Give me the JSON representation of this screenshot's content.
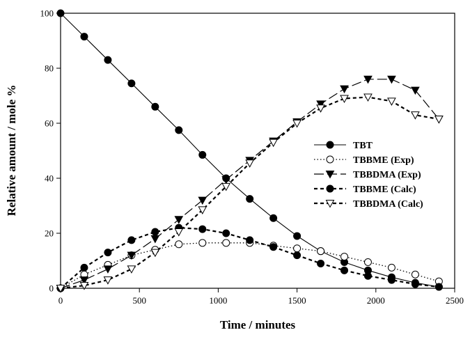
{
  "chart_data": {
    "type": "line",
    "xlabel": "Time / minutes",
    "ylabel": "Relative amount / mole %",
    "xlim": [
      0,
      2500
    ],
    "ylim": [
      0,
      100
    ],
    "xticks": [
      0,
      500,
      1000,
      1500,
      2000,
      2500
    ],
    "yticks": [
      0,
      20,
      40,
      60,
      80,
      100
    ],
    "grid": false,
    "legend_position": "right",
    "series": [
      {
        "name": "TBT",
        "marker": "filled-circle",
        "line": "solid",
        "x": [
          0,
          150,
          300,
          450,
          600,
          750,
          900,
          1050,
          1200,
          1350,
          1500,
          1650,
          1800,
          1950,
          2100,
          2250,
          2400
        ],
        "y": [
          100,
          91.5,
          83,
          74.5,
          66,
          57.5,
          48.5,
          40,
          32.5,
          25.5,
          19,
          13.5,
          9.5,
          6.5,
          4,
          2,
          0.5
        ]
      },
      {
        "name": "TBBME (Exp)",
        "marker": "open-circle",
        "line": "dotted",
        "x": [
          0,
          150,
          300,
          450,
          600,
          750,
          900,
          1050,
          1200,
          1350,
          1500,
          1650,
          1800,
          1950,
          2100,
          2250,
          2400
        ],
        "y": [
          0,
          5,
          8.5,
          12,
          14,
          16,
          16.5,
          16.5,
          16.5,
          15.5,
          14.5,
          13.5,
          11.5,
          9.5,
          7.5,
          5,
          2.5
        ]
      },
      {
        "name": "TBBDMA (Exp)",
        "marker": "filled-triangle-down",
        "line": "long-dash",
        "x": [
          0,
          150,
          300,
          450,
          600,
          750,
          900,
          1050,
          1200,
          1350,
          1500,
          1650,
          1800,
          1950,
          2100,
          2250,
          2400
        ],
        "y": [
          0,
          3,
          7,
          12,
          18,
          25,
          32,
          39.5,
          46.5,
          53.5,
          60.5,
          67,
          72.5,
          76,
          76,
          72,
          61.5
        ]
      },
      {
        "name": "TBBME (Calc)",
        "marker": "filled-circle",
        "line": "short-dash",
        "x": [
          0,
          150,
          300,
          450,
          600,
          750,
          900,
          1050,
          1200,
          1350,
          1500,
          1650,
          1800,
          1950,
          2100,
          2250,
          2400
        ],
        "y": [
          0,
          7.5,
          13,
          17.5,
          20.5,
          22,
          21.5,
          20,
          17.5,
          15,
          12,
          9,
          6.5,
          4.5,
          3,
          1.5,
          0.5
        ]
      },
      {
        "name": "TBBDMA (Calc)",
        "marker": "open-triangle-down",
        "line": "short-dash",
        "x": [
          0,
          150,
          300,
          450,
          600,
          750,
          900,
          1050,
          1200,
          1350,
          1500,
          1650,
          1800,
          1950,
          2100,
          2250,
          2400
        ],
        "y": [
          0,
          1,
          3,
          7,
          13,
          20.5,
          28.5,
          37,
          45.5,
          53,
          60,
          65.5,
          69,
          69.5,
          68,
          63,
          61.5
        ]
      }
    ]
  }
}
